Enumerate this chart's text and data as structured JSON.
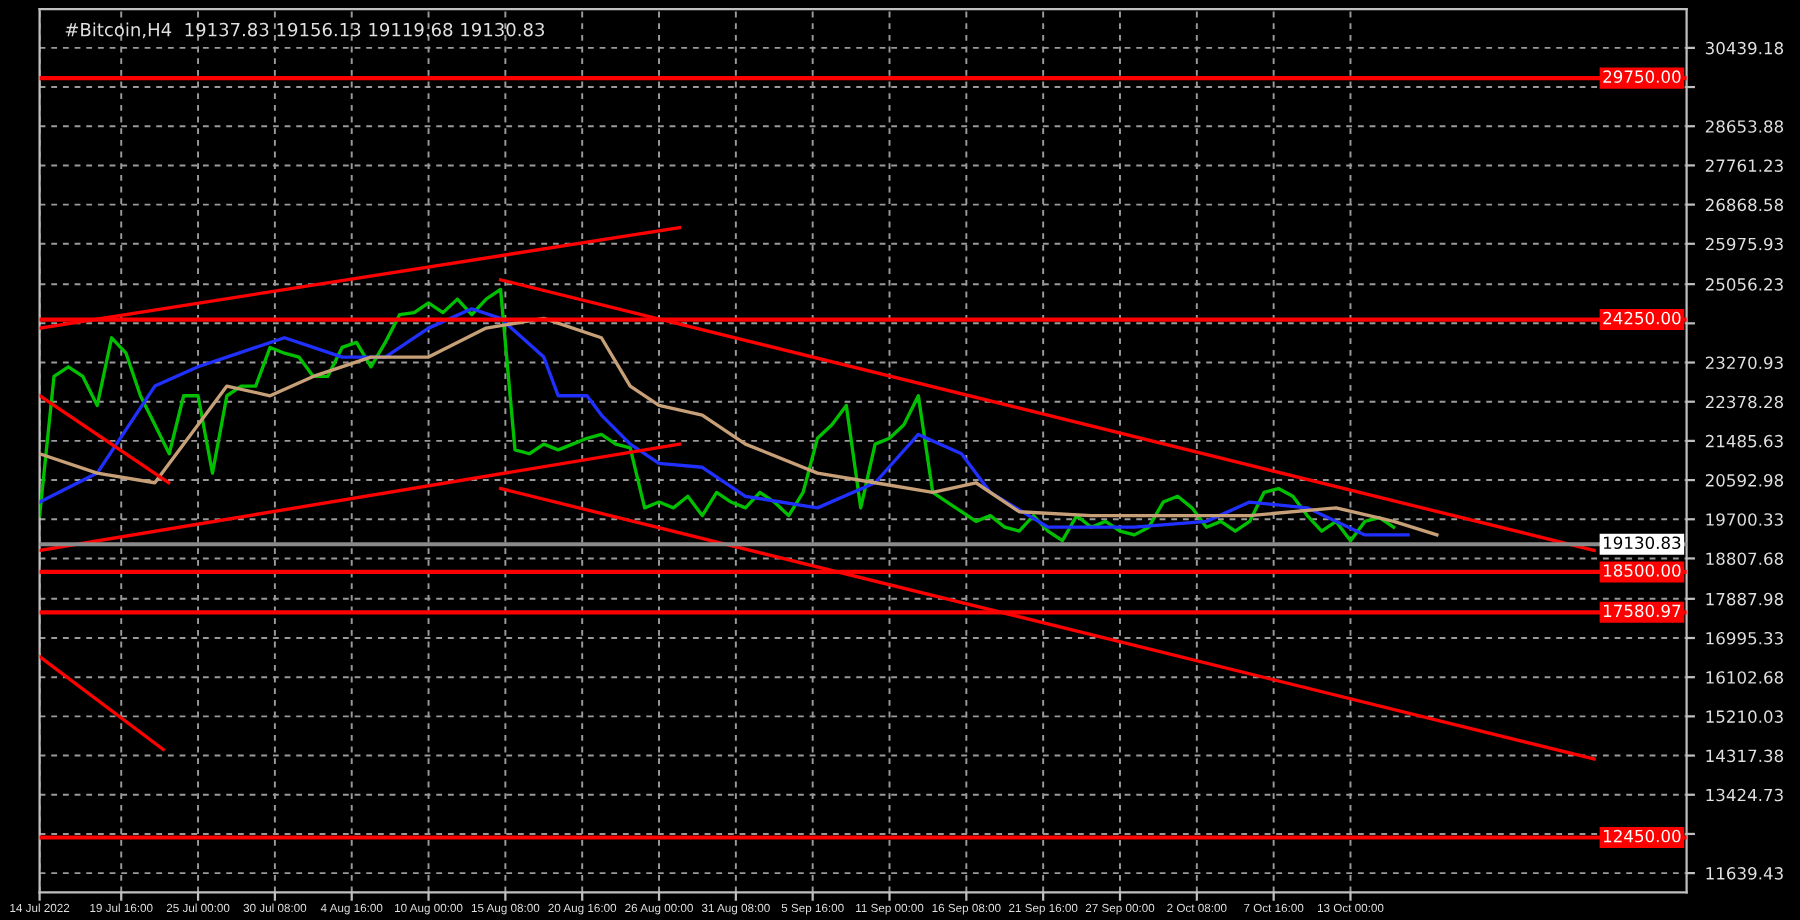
{
  "chart_data": {
    "type": "line",
    "title": "#Bitcoin,H4  19137.83 19156.13 19119.68 19130.83",
    "series": [
      {
        "color": "#00c000",
        "x": [
          "2022-07-14",
          "2022-07-15",
          "2022-07-16",
          "2022-07-17",
          "2022-07-18",
          "2022-07-19",
          "2022-07-20",
          "2022-07-21",
          "2022-07-22",
          "2022-07-23",
          "2022-07-24",
          "2022-07-25",
          "2022-07-26",
          "2022-07-27",
          "2022-07-28",
          "2022-07-29",
          "2022-07-30",
          "2022-07-31",
          "2022-08-01",
          "2022-08-02",
          "2022-08-03",
          "2022-08-04",
          "2022-08-05",
          "2022-08-06",
          "2022-08-07",
          "2022-08-08",
          "2022-08-09",
          "2022-08-10",
          "2022-08-11",
          "2022-08-12",
          "2022-08-13",
          "2022-08-14",
          "2022-08-15",
          "2022-08-16",
          "2022-08-17",
          "2022-08-18",
          "2022-08-19",
          "2022-08-20",
          "2022-08-21",
          "2022-08-22",
          "2022-08-23",
          "2022-08-24",
          "2022-08-25",
          "2022-08-26",
          "2022-08-27",
          "2022-08-28",
          "2022-08-29",
          "2022-08-30",
          "2022-08-31",
          "2022-09-01",
          "2022-09-02",
          "2022-09-03",
          "2022-09-04",
          "2022-09-05",
          "2022-09-06",
          "2022-09-07",
          "2022-09-08",
          "2022-09-09",
          "2022-09-10",
          "2022-09-11",
          "2022-09-12",
          "2022-09-13",
          "2022-09-14",
          "2022-09-15",
          "2022-09-16",
          "2022-09-17",
          "2022-09-18",
          "2022-09-19",
          "2022-09-20",
          "2022-09-21",
          "2022-09-22",
          "2022-09-23",
          "2022-09-24",
          "2022-09-25",
          "2022-09-26",
          "2022-09-27",
          "2022-09-28",
          "2022-09-29",
          "2022-09-30",
          "2022-10-01",
          "2022-10-02",
          "2022-10-03",
          "2022-10-04",
          "2022-10-05",
          "2022-10-06",
          "2022-10-07",
          "2022-10-08",
          "2022-10-09",
          "2022-10-10",
          "2022-10-11",
          "2022-10-12",
          "2022-10-13",
          "2022-10-14",
          "2022-10-15",
          "2022-10-16"
        ],
        "values": [
          19784,
          22954,
          23174,
          22954,
          22294,
          23835,
          23483,
          22514,
          21853,
          21193,
          22514,
          22514,
          20752,
          22514,
          22734,
          22734,
          23615,
          23483,
          23395,
          22954,
          22954,
          23615,
          23730,
          23174,
          23730,
          24364,
          24408,
          24628,
          24408,
          24716,
          24364,
          24716,
          24936,
          21281,
          21193,
          21413,
          21281,
          21413,
          21545,
          21633,
          21413,
          21325,
          19960,
          20092,
          19960,
          20224,
          19784,
          20312,
          20092,
          19960,
          20312,
          20092,
          19784,
          20312,
          21545,
          21853,
          22294,
          19960,
          21413,
          21545,
          21853,
          22514,
          20312,
          20092,
          19872,
          19652,
          19784,
          19520,
          19431,
          19784,
          19431,
          19212,
          19784,
          19520,
          19652,
          19431,
          19344,
          19520,
          20092,
          20224,
          19960,
          19520,
          19652,
          19431,
          19652,
          20312,
          20400,
          20224,
          19784,
          19431,
          19652,
          19212,
          19652,
          19740,
          19520
        ]
      },
      {
        "color": "#2030ff",
        "x": [
          "2022-07-14",
          "2022-07-18",
          "2022-07-22",
          "2022-07-25",
          "2022-07-27",
          "2022-07-31",
          "2022-08-02",
          "2022-08-04",
          "2022-08-07",
          "2022-08-10",
          "2022-08-13",
          "2022-08-15",
          "2022-08-18",
          "2022-08-19",
          "2022-08-21",
          "2022-08-22",
          "2022-08-24",
          "2022-08-26",
          "2022-08-29",
          "2022-09-01",
          "2022-09-06",
          "2022-09-10",
          "2022-09-13",
          "2022-09-16",
          "2022-09-18",
          "2022-09-22",
          "2022-09-28",
          "2022-10-03",
          "2022-10-06",
          "2022-10-10",
          "2022-10-14",
          "2022-10-17"
        ],
        "values": [
          20092,
          20752,
          22734,
          23174,
          23395,
          23835,
          23615,
          23395,
          23395,
          24055,
          24496,
          24275,
          23395,
          22514,
          22514,
          22074,
          21413,
          20973,
          20885,
          20224,
          19960,
          20532,
          21633,
          21193,
          20312,
          19520,
          19520,
          19652,
          20092,
          19960,
          19344,
          19344
        ]
      },
      {
        "color": "#c8a078",
        "x": [
          "2022-07-14",
          "2022-07-18",
          "2022-07-22",
          "2022-07-25",
          "2022-07-27",
          "2022-07-30",
          "2022-08-02",
          "2022-08-06",
          "2022-08-10",
          "2022-08-14",
          "2022-08-18",
          "2022-08-22",
          "2022-08-24",
          "2022-08-26",
          "2022-08-29",
          "2022-09-01",
          "2022-09-06",
          "2022-09-10",
          "2022-09-14",
          "2022-09-17",
          "2022-09-20",
          "2022-09-25",
          "2022-10-01",
          "2022-10-06",
          "2022-10-12",
          "2022-10-16",
          "2022-10-19"
        ],
        "values": [
          21193,
          20752,
          20532,
          21853,
          22734,
          22514,
          22954,
          23395,
          23395,
          24055,
          24275,
          23835,
          22734,
          22294,
          22074,
          21413,
          20752,
          20532,
          20312,
          20532,
          19872,
          19784,
          19784,
          19784,
          19960,
          19652,
          19344
        ]
      },
      {
        "color": "#ff0000",
        "x": [
          "2022-07-14T00:00",
          "2022-08-27T10:00"
        ],
        "values": [
          24055,
          26345
        ]
      },
      {
        "color": "#ff0000",
        "x": [
          "2022-07-14T00:00",
          "2022-08-27T10:00"
        ],
        "values": [
          18991,
          21413
        ]
      },
      {
        "color": "#ff0000",
        "x": [
          "2022-08-15T00:00",
          "2022-10-29T22:00"
        ],
        "values": [
          25156,
          18991
        ]
      },
      {
        "color": "#ff0000",
        "x": [
          "2022-08-15T00:00",
          "2022-10-29T22:00"
        ],
        "values": [
          20401,
          14237
        ]
      },
      {
        "color": "#ff0000",
        "x": [
          "2022-07-14T00:00",
          "2022-07-22T23:00"
        ],
        "values": [
          22514,
          20532
        ]
      },
      {
        "color": "#ff0000",
        "x": [
          "2022-07-14T00:00",
          "2022-07-22T14:00"
        ],
        "values": [
          16570,
          14456
        ]
      }
    ],
    "ref_lines": [
      {
        "axis": "y",
        "value": 29750.0,
        "label": "29750.00",
        "color": "#ff0000"
      },
      {
        "axis": "y",
        "value": 24250.0,
        "label": "24250.00",
        "color": "#ff0000"
      },
      {
        "axis": "y",
        "value": 18500.0,
        "label": "18500.00",
        "color": "#ff0000"
      },
      {
        "axis": "y",
        "value": 17580.97,
        "label": "17580.97",
        "color": "#ff0000"
      },
      {
        "axis": "y",
        "value": 12450.0,
        "label": "12450.00",
        "color": "#ff0000"
      },
      {
        "axis": "y",
        "value": 19130.83,
        "label": "19130.83",
        "color": "#8a8a8a"
      }
    ],
    "xlim": [
      "2022-07-14T00:00",
      "2022-11-05T08:00"
    ],
    "xticks": [
      {
        "value": "2022-07-14T00:00",
        "label": "14 Jul 2022"
      },
      {
        "value": "2022-07-19T16:00",
        "label": "19 Jul 16:00"
      },
      {
        "value": "2022-07-25T00:00",
        "label": "25 Jul 00:00"
      },
      {
        "value": "2022-07-30T08:00",
        "label": "30 Jul 08:00"
      },
      {
        "value": "2022-08-04T16:00",
        "label": "4 Aug 16:00"
      },
      {
        "value": "2022-08-10T00:00",
        "label": "10 Aug 00:00"
      },
      {
        "value": "2022-08-15T08:00",
        "label": "15 Aug 08:00"
      },
      {
        "value": "2022-08-20T16:00",
        "label": "20 Aug 16:00"
      },
      {
        "value": "2022-08-26T00:00",
        "label": "26 Aug 00:00"
      },
      {
        "value": "2022-08-31T08:00",
        "label": "31 Aug 08:00"
      },
      {
        "value": "2022-09-05T16:00",
        "label": "5 Sep 16:00"
      },
      {
        "value": "2022-09-11T00:00",
        "label": "11 Sep 00:00"
      },
      {
        "value": "2022-09-16T08:00",
        "label": "16 Sep 08:00"
      },
      {
        "value": "2022-09-21T16:00",
        "label": "21 Sep 16:00"
      },
      {
        "value": "2022-09-27T00:00",
        "label": "27 Sep 00:00"
      },
      {
        "value": "2022-10-02T08:00",
        "label": "2 Oct 08:00"
      },
      {
        "value": "2022-10-07T16:00",
        "label": "7 Oct 16:00"
      },
      {
        "value": "2022-10-13T00:00",
        "label": "13 Oct 00:00"
      }
    ],
    "ylim": [
      11200,
      31320
    ],
    "yticks": [
      30439.18,
      {
        "value": 29546.53,
        "label": null
      },
      28653.88,
      27761.23,
      26868.58,
      25975.93,
      25056.23,
      {
        "value": 24163.58,
        "label": null
      },
      23270.93,
      22378.28,
      21485.63,
      20592.98,
      19700.33,
      18807.68,
      17887.98,
      16995.33,
      16102.68,
      15210.03,
      14317.38,
      13424.73,
      {
        "value": 12532.08,
        "label": null
      },
      11639.43
    ],
    "grid": true,
    "line_style": "solid"
  }
}
